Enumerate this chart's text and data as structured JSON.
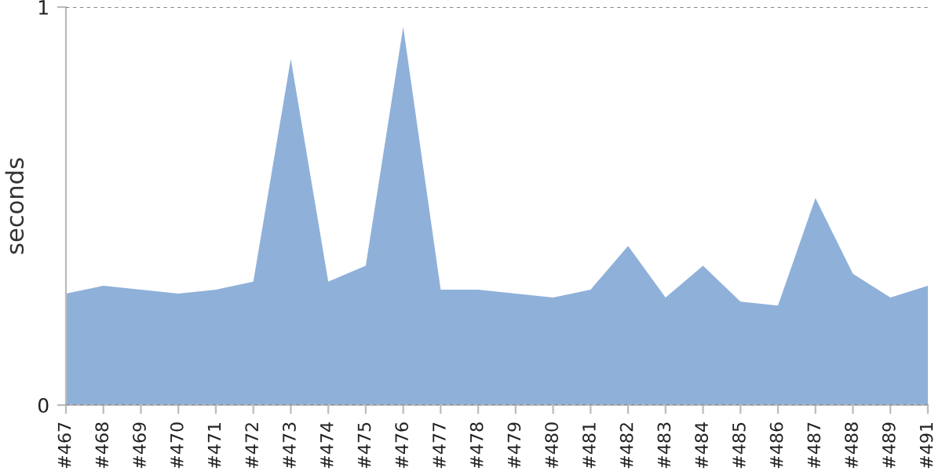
{
  "chart_data": {
    "type": "area",
    "ylabel": "seconds",
    "categories": [
      "#467",
      "#468",
      "#469",
      "#470",
      "#471",
      "#472",
      "#473",
      "#474",
      "#475",
      "#476",
      "#477",
      "#478",
      "#479",
      "#480",
      "#481",
      "#482",
      "#483",
      "#484",
      "#485",
      "#486",
      "#487",
      "#488",
      "#489",
      "#491"
    ],
    "series": [
      {
        "color": "#8fb1d9",
        "values": [
          0.28,
          0.3,
          0.29,
          0.28,
          0.29,
          0.31,
          0.87,
          0.31,
          0.35,
          0.95,
          0.29,
          0.29,
          0.28,
          0.27,
          0.29,
          0.4,
          0.27,
          0.35,
          0.26,
          0.25,
          0.52,
          0.33,
          0.27,
          0.3
        ]
      }
    ],
    "ylim": [
      0,
      1
    ],
    "yticks": [
      0,
      1
    ],
    "grid": "y"
  }
}
